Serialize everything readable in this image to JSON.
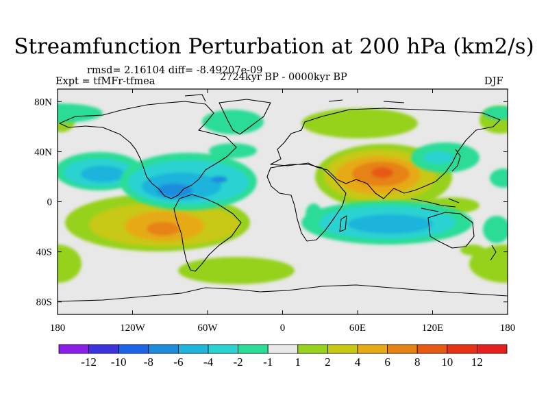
{
  "title": "Streamfunction Perturbation at 200 hPa (km2/s)",
  "stats": "rmsd= 2.16104  diff= -8.49207e-09",
  "experiment": "Expt = tfMFr-tfmea",
  "period": "2724kyr BP - 0000kyr BP",
  "season": "DJF",
  "axes": {
    "y_ticks": [
      "80N",
      "40N",
      "0",
      "40S",
      "80S"
    ],
    "x_ticks": [
      "180",
      "120W",
      "60W",
      "0",
      "60E",
      "120E",
      "180"
    ]
  },
  "colorbar": {
    "labels": [
      "-12",
      "-10",
      "-8",
      "-6",
      "-4",
      "-2",
      "-1",
      "1",
      "2",
      "4",
      "6",
      "8",
      "10",
      "12"
    ],
    "colors": [
      "#8b1ee8",
      "#3c32dc",
      "#1e64e6",
      "#1e8cdc",
      "#1eb4dc",
      "#2ad2d2",
      "#2adc96",
      "#e8e8e8",
      "#96d21e",
      "#c8c814",
      "#e6aa14",
      "#e68214",
      "#e65a14",
      "#e63214",
      "#e61e1e"
    ]
  },
  "colors": {
    "land_outline": "#000000",
    "background": "#e8e8e8"
  }
}
